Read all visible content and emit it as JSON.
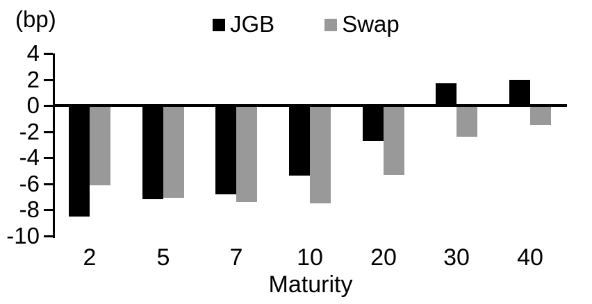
{
  "chart_data": {
    "type": "bar",
    "title": "",
    "unit_label": "(bp)",
    "xlabel": "Maturity",
    "categories": [
      "2",
      "5",
      "7",
      "10",
      "20",
      "30",
      "40"
    ],
    "series": [
      {
        "name": "JGB",
        "color": "#000000",
        "values": [
          -8.5,
          -7.2,
          -6.8,
          -5.4,
          -2.7,
          1.7,
          2.0
        ]
      },
      {
        "name": "Swap",
        "color": "#999999",
        "values": [
          -6.1,
          -7.1,
          -7.4,
          -7.5,
          -5.3,
          -2.4,
          -1.5
        ]
      }
    ],
    "ylim": [
      -10,
      4
    ],
    "yticks": [
      4,
      2,
      0,
      -2,
      -4,
      -6,
      -8,
      -10
    ],
    "grid": false,
    "legend_position": "top-center",
    "axis_color": "#000000",
    "background_color": "#ffffff"
  }
}
